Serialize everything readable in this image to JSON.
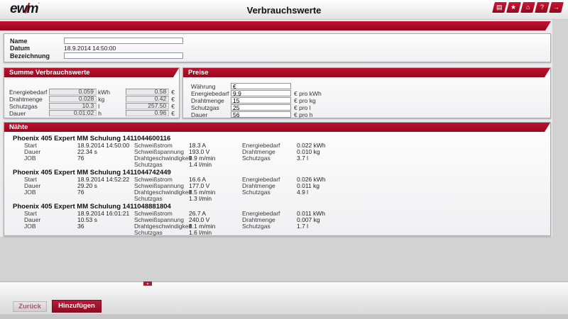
{
  "header": {
    "logo": {
      "pre": "ew",
      "slash": "/",
      "post": "m",
      "mark": "·"
    },
    "title": "Verbrauchswerte",
    "icons": [
      {
        "name": "print",
        "glyph": "▤"
      },
      {
        "name": "favorites",
        "glyph": "★"
      },
      {
        "name": "home",
        "glyph": "⌂"
      },
      {
        "name": "help",
        "glyph": "?"
      },
      {
        "name": "logout",
        "glyph": "→"
      }
    ]
  },
  "details": {
    "name_label": "Name",
    "name_value": "",
    "date_label": "Datum",
    "date_value": "18.9.2014 14:50:00",
    "designation_label": "Bezeichnung",
    "designation_value": ""
  },
  "summary": {
    "title": "Summe Verbrauchswerte",
    "rows": [
      {
        "label": "Energiebedarf",
        "amount": "0.059",
        "unit": "kWh",
        "cost": "0.58",
        "currency": "€"
      },
      {
        "label": "Drahtmenge",
        "amount": "0.028",
        "unit": "kg",
        "cost": "0.42",
        "currency": "€"
      },
      {
        "label": "Schutzgas",
        "amount": "10.3",
        "unit": "l",
        "cost": "257.50",
        "currency": "€"
      },
      {
        "label": "Dauer",
        "amount": "0.01:02",
        "unit": "h",
        "cost": "0.96",
        "currency": "€"
      }
    ]
  },
  "prices": {
    "title": "Preise",
    "rows": [
      {
        "label": "Währung",
        "value": "€",
        "unit": ""
      },
      {
        "label": "Energiebedarf",
        "value": "9.9",
        "unit": "€ pro kWh"
      },
      {
        "label": "Drahtmenge",
        "value": "15",
        "unit": "€ pro kg"
      },
      {
        "label": "Schutzgas",
        "value": "25",
        "unit": "€ pro l"
      },
      {
        "label": "Dauer",
        "value": "56",
        "unit": "€ pro h"
      }
    ]
  },
  "welds": {
    "title": "Nähte",
    "items": [
      {
        "name": "Phoenix 405 Expert MM Schulung 1411044600116",
        "info": [
          {
            "label": "Start",
            "value": "18.9.2014 14:50:00"
          },
          {
            "label": "Dauer",
            "value": "22.34 s"
          },
          {
            "label": "JOB",
            "value": "76"
          }
        ],
        "process": [
          {
            "label": "Schweißstrom",
            "value": "18.3 A"
          },
          {
            "label": "Schweißspannung",
            "value": "193.0 V"
          },
          {
            "label": "Drahtgeschwindigkeit",
            "value": "9.9 m/min"
          },
          {
            "label": "Schutzgas",
            "value": "1.4 l/min"
          }
        ],
        "consumption": [
          {
            "label": "Energiebedarf",
            "value": "0.022 kWh"
          },
          {
            "label": "Drahtmenge",
            "value": "0.010 kg"
          },
          {
            "label": "Schutzgas",
            "value": "3.7 l"
          }
        ]
      },
      {
        "name": "Phoenix 405 Expert MM Schulung 1411044742449",
        "info": [
          {
            "label": "Start",
            "value": "18.9.2014 14:52:22"
          },
          {
            "label": "Dauer",
            "value": "29.20 s"
          },
          {
            "label": "JOB",
            "value": "76"
          }
        ],
        "process": [
          {
            "label": "Schweißstrom",
            "value": "16.6 A"
          },
          {
            "label": "Schweißspannung",
            "value": "177.0 V"
          },
          {
            "label": "Drahtgeschwindigkeit",
            "value": "8.5 m/min"
          },
          {
            "label": "Schutzgas",
            "value": "1.3 l/min"
          }
        ],
        "consumption": [
          {
            "label": "Energiebedarf",
            "value": "0.026 kWh"
          },
          {
            "label": "Drahtmenge",
            "value": "0.011 kg"
          },
          {
            "label": "Schutzgas",
            "value": "4.9 l"
          }
        ]
      },
      {
        "name": "Phoenix 405 Expert MM Schulung 1411048881804",
        "info": [
          {
            "label": "Start",
            "value": "18.9.2014 16:01:21"
          },
          {
            "label": "Dauer",
            "value": "10.53 s"
          },
          {
            "label": "JOB",
            "value": "36"
          }
        ],
        "process": [
          {
            "label": "Schweißstrom",
            "value": "26.7 A"
          },
          {
            "label": "Schweißspannung",
            "value": "240.0 V"
          },
          {
            "label": "Drahtgeschwindigkeit",
            "value": "8.1 m/min"
          },
          {
            "label": "Schutzgas",
            "value": "1.6 l/min"
          }
        ],
        "consumption": [
          {
            "label": "Energiebedarf",
            "value": "0.011 kWh"
          },
          {
            "label": "Drahtmenge",
            "value": "0.007 kg"
          },
          {
            "label": "Schutzgas",
            "value": "1.7 l"
          }
        ]
      }
    ]
  },
  "footer": {
    "back_label": "Zurück",
    "add_label": "Hinzufügen",
    "collapse_arrow": "▲"
  },
  "colors": {
    "accent": "#b00e2a",
    "accent_dark": "#97091f",
    "button": "#a81d33"
  }
}
